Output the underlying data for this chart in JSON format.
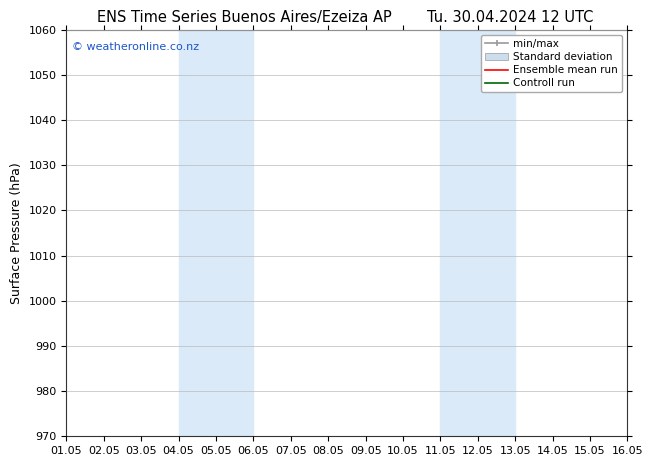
{
  "title_left": "ENS Time Series Buenos Aires/Ezeiza AP",
  "title_right": "Tu. 30.04.2024 12 UTC",
  "ylabel": "Surface Pressure (hPa)",
  "ylim": [
    970,
    1060
  ],
  "yticks": [
    970,
    980,
    990,
    1000,
    1010,
    1020,
    1030,
    1040,
    1050,
    1060
  ],
  "xtick_labels": [
    "01.05",
    "02.05",
    "03.05",
    "04.05",
    "05.05",
    "06.05",
    "07.05",
    "08.05",
    "09.05",
    "10.05",
    "11.05",
    "12.05",
    "13.05",
    "14.05",
    "15.05",
    "16.05"
  ],
  "shaded_bands": [
    {
      "xstart": 3,
      "xend": 5,
      "color": "#daeaf8"
    },
    {
      "xstart": 10,
      "xend": 12,
      "color": "#daeaf8"
    }
  ],
  "watermark": "© weatheronline.co.nz",
  "watermark_color": "#1a56c8",
  "bg_color": "#ffffff",
  "spine_color": "#333333",
  "grid_color": "#bbbbbb",
  "title_fontsize": 10.5,
  "label_fontsize": 9,
  "tick_fontsize": 8
}
